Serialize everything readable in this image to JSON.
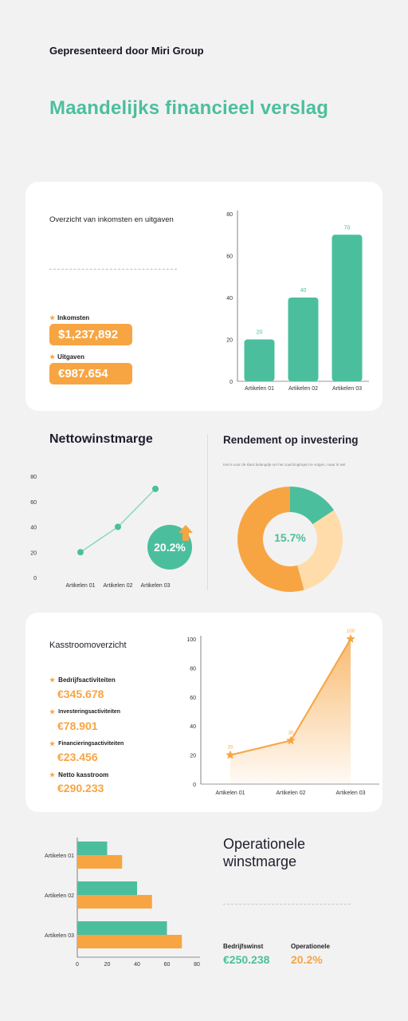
{
  "header": {
    "presenter": "Gepresenteerd door Miri Group",
    "title": "Maandelijks financieel verslag"
  },
  "colors": {
    "green": "#4bbf9d",
    "orange": "#f7a543",
    "peach": "#ffdcaa",
    "background": "#f3f2f2"
  },
  "income_card": {
    "heading": "Overzicht van inkomsten en uitgaven",
    "income_label": "Inkomsten",
    "income_value": "$1,237,892",
    "expense_label": "Uitgaven",
    "expense_value": "€987.654"
  },
  "net_margin": {
    "title": "Nettowinstmarge",
    "badge": "20.2%"
  },
  "roi": {
    "title": "Rendement op investering",
    "subtitle": "Het is voor de klant belangrijk om het coachingtraject te volgen, maar ik wel",
    "center_value": "15.7%"
  },
  "cashflow": {
    "heading": "Kasstroomoverzicht",
    "items": [
      {
        "label": "Bedrijfsactiviteiten",
        "value": "€345.678"
      },
      {
        "label": "Investeringsactiviteiten",
        "value": "€78.901"
      },
      {
        "label": "Financieringsactiviteiten",
        "value": "€23.456"
      },
      {
        "label": "Netto kasstroom",
        "value": "€290.233"
      }
    ]
  },
  "operational": {
    "title_line1": "Operationele",
    "title_line2": "winstmarge",
    "profit_label": "Bedrijfswinst",
    "profit_value": "€250.238",
    "margin_label": "Operationele",
    "margin_value": "20.2%"
  },
  "chart_data": [
    {
      "id": "income-bar",
      "type": "bar",
      "categories": [
        "Artikelen 01",
        "Artikelen 02",
        "Artikelen 03"
      ],
      "values": [
        20,
        40,
        70
      ],
      "ylim": [
        0,
        80
      ],
      "yticks": [
        0,
        20,
        40,
        60,
        80
      ],
      "data_labels": true,
      "color": "#4bbf9d"
    },
    {
      "id": "margin-line",
      "type": "line",
      "categories": [
        "Artikelen 01",
        "Artikelen 02",
        "Artikelen 03"
      ],
      "values": [
        20,
        40,
        70
      ],
      "ylim": [
        0,
        80
      ],
      "yticks": [
        0,
        20,
        40,
        60,
        80
      ],
      "color": "#4bbf9d"
    },
    {
      "id": "roi-donut",
      "type": "pie",
      "values": [
        15.7,
        30,
        54.3
      ],
      "colors": [
        "#4bbf9d",
        "#ffdcaa",
        "#f7a543"
      ]
    },
    {
      "id": "cashflow-area",
      "type": "area",
      "categories": [
        "Artikelen 01",
        "Artikelen 02",
        "Artikelen 03"
      ],
      "values": [
        20,
        30,
        100
      ],
      "ylim": [
        0,
        100
      ],
      "yticks": [
        0,
        20,
        40,
        60,
        80,
        100
      ],
      "data_labels": true,
      "color": "#f7a543"
    },
    {
      "id": "operational-hbar",
      "type": "bar",
      "orientation": "horizontal",
      "categories": [
        "Artikelen 01",
        "Artikelen 02",
        "Artikelen 03"
      ],
      "series": [
        {
          "values": [
            20,
            40,
            60
          ],
          "color": "#4bbf9d"
        },
        {
          "values": [
            30,
            50,
            70
          ],
          "color": "#f7a543"
        }
      ],
      "xlim": [
        0,
        80
      ],
      "xticks": [
        0,
        20,
        40,
        60,
        80
      ]
    }
  ]
}
